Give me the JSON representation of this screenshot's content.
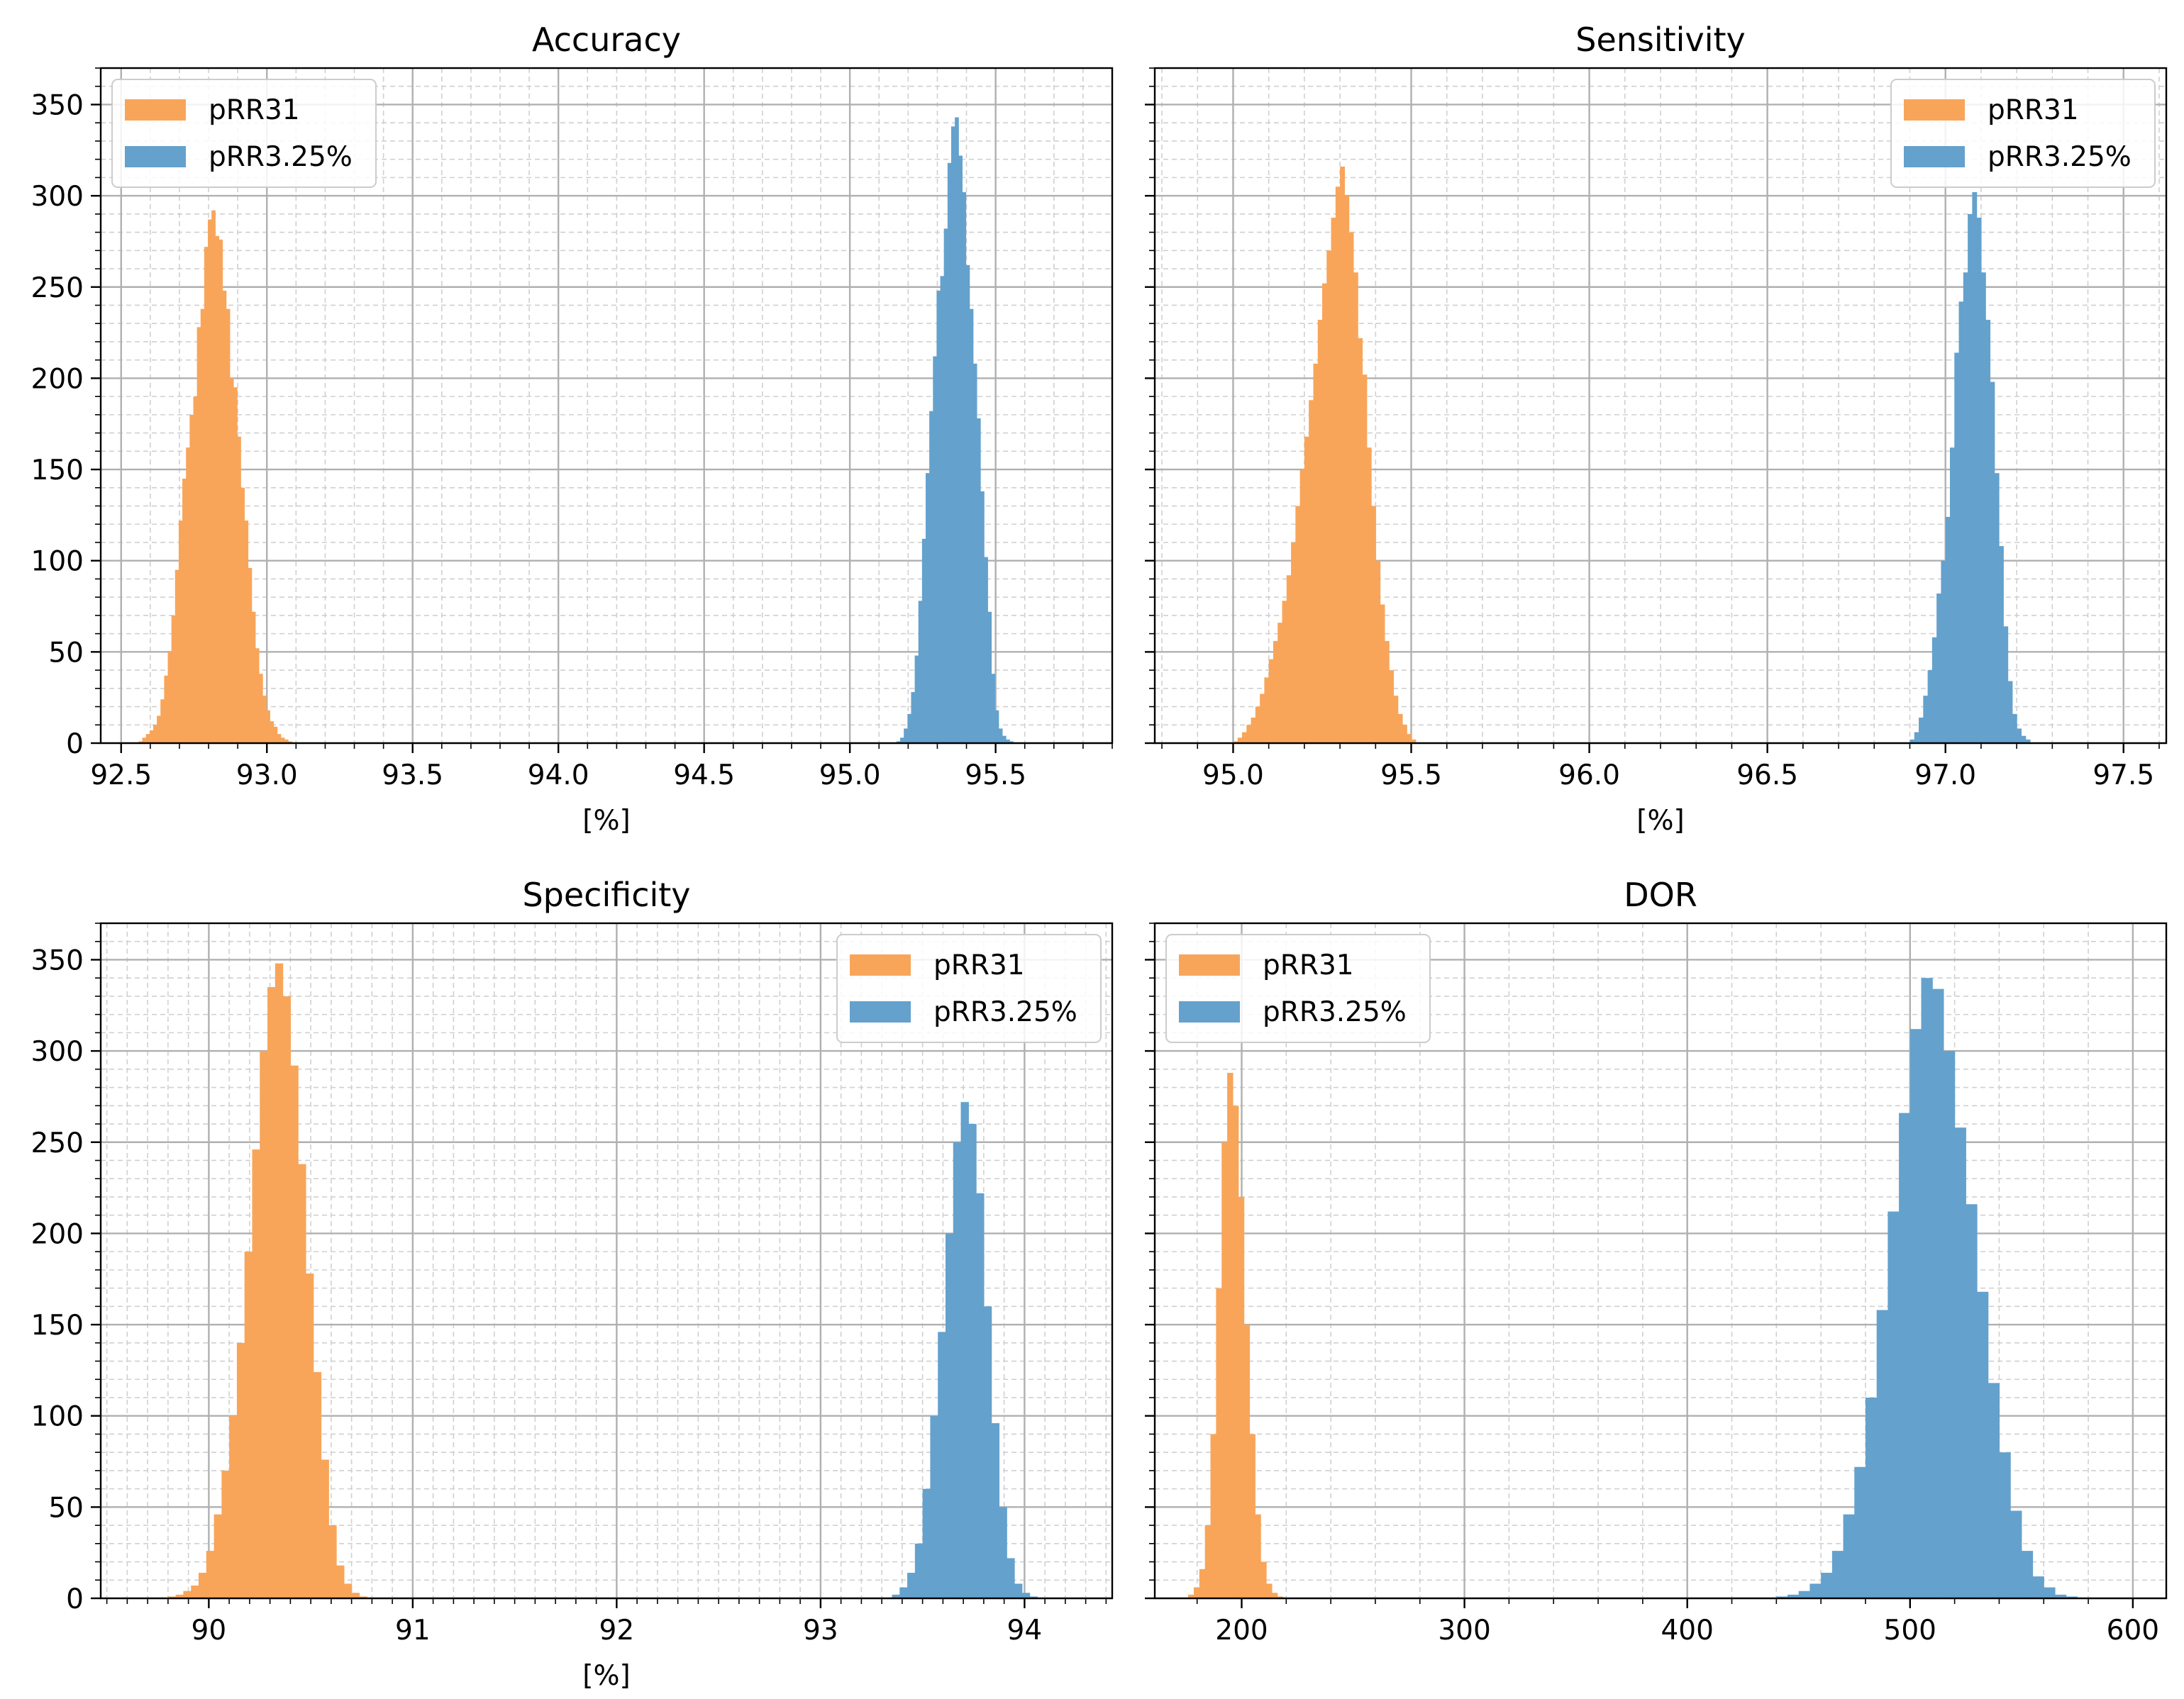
{
  "colors": {
    "pRR31": "#f8a55a",
    "pRR3.25%": "#64a1cd"
  },
  "chart_data": [
    {
      "type": "histogram",
      "title": "Accuracy",
      "xlabel": "[%]",
      "ylabel": "",
      "xlim": [
        92.43,
        95.9
      ],
      "ylim": [
        0,
        370
      ],
      "xticks": [
        92.5,
        93.0,
        93.5,
        94.0,
        94.5,
        95.0,
        95.5
      ],
      "xtick_labels": [
        "92.5",
        "93.0",
        "93.5",
        "94.0",
        "94.5",
        "95.0",
        "95.5"
      ],
      "yticks": [
        0,
        50,
        100,
        150,
        200,
        250,
        300,
        350
      ],
      "ytick_labels": [
        "0",
        "50",
        "100",
        "150",
        "200",
        "250",
        "300",
        "350"
      ],
      "x_minor_step": 0.1,
      "y_minor_step": 10,
      "grid": true,
      "legend": {
        "position": "upper-left",
        "entries": [
          "pRR31",
          "pRR3.25%"
        ]
      },
      "series": [
        {
          "name": "pRR31",
          "bin_start": 92.56,
          "bin_width": 0.0125,
          "counts": [
            1,
            3,
            5,
            7,
            10,
            15,
            24,
            37,
            50,
            70,
            95,
            122,
            145,
            162,
            180,
            190,
            228,
            238,
            272,
            287,
            292,
            278,
            276,
            248,
            238,
            200,
            195,
            168,
            140,
            122,
            96,
            72,
            52,
            38,
            26,
            18,
            12,
            9,
            5,
            3,
            2,
            1
          ]
        },
        {
          "name": "pRR3.25%",
          "bin_start": 95.16,
          "bin_width": 0.0125,
          "counts": [
            1,
            3,
            8,
            16,
            28,
            48,
            78,
            112,
            148,
            182,
            212,
            248,
            256,
            282,
            318,
            338,
            343,
            322,
            302,
            262,
            238,
            208,
            178,
            138,
            102,
            72,
            38,
            18,
            8,
            4,
            2,
            1
          ]
        }
      ]
    },
    {
      "type": "histogram",
      "title": "Sensitivity",
      "xlabel": "[%]",
      "ylabel": "",
      "xlim": [
        94.78,
        97.62
      ],
      "ylim": [
        0,
        370
      ],
      "xticks": [
        95.0,
        95.5,
        96.0,
        96.5,
        97.0,
        97.5
      ],
      "xtick_labels": [
        "95.0",
        "95.5",
        "96.0",
        "96.5",
        "97.0",
        "97.5"
      ],
      "yticks": [
        0,
        50,
        100,
        150,
        200,
        250,
        300,
        350
      ],
      "ytick_labels": [
        "",
        "",
        "",
        "",
        "",
        "",
        "",
        ""
      ],
      "x_minor_step": 0.1,
      "y_minor_step": 10,
      "grid": true,
      "legend": {
        "position": "upper-right",
        "entries": [
          "pRR31",
          "pRR3.25%"
        ]
      },
      "series": [
        {
          "name": "pRR31",
          "bin_start": 95.0,
          "bin_width": 0.0125,
          "counts": [
            1,
            3,
            6,
            10,
            14,
            20,
            27,
            36,
            46,
            56,
            66,
            78,
            92,
            110,
            130,
            150,
            168,
            188,
            208,
            232,
            252,
            270,
            288,
            305,
            316,
            300,
            280,
            258,
            222,
            202,
            162,
            130,
            100,
            76,
            56,
            40,
            26,
            16,
            10,
            5,
            2
          ]
        },
        {
          "name": "pRR3.25%",
          "bin_start": 96.9,
          "bin_width": 0.0125,
          "counts": [
            2,
            6,
            14,
            26,
            40,
            58,
            82,
            100,
            124,
            162,
            214,
            242,
            258,
            290,
            302,
            288,
            258,
            232,
            198,
            148,
            108,
            64,
            34,
            16,
            8,
            4,
            2
          ]
        }
      ]
    },
    {
      "type": "histogram",
      "title": "Specificity",
      "xlabel": "[%]",
      "ylabel": "",
      "xlim": [
        89.47,
        94.43
      ],
      "ylim": [
        0,
        370
      ],
      "xticks": [
        90,
        91,
        92,
        93,
        94
      ],
      "xtick_labels": [
        "90",
        "91",
        "92",
        "93",
        "94"
      ],
      "yticks": [
        0,
        50,
        100,
        150,
        200,
        250,
        300,
        350
      ],
      "ytick_labels": [
        "0",
        "50",
        "100",
        "150",
        "200",
        "250",
        "300",
        "350"
      ],
      "x_minor_step": 0.1,
      "y_minor_step": 10,
      "grid": true,
      "legend": {
        "position": "upper-right",
        "entries": [
          "pRR31",
          "pRR3.25%"
        ]
      },
      "series": [
        {
          "name": "pRR31",
          "bin_start": 89.8,
          "bin_width": 0.0375,
          "counts": [
            1,
            2,
            4,
            7,
            14,
            26,
            46,
            70,
            100,
            140,
            190,
            246,
            300,
            335,
            348,
            330,
            292,
            238,
            178,
            124,
            76,
            40,
            18,
            8,
            3,
            1
          ]
        },
        {
          "name": "pRR3.25%",
          "bin_start": 93.35,
          "bin_width": 0.0375,
          "counts": [
            2,
            6,
            14,
            30,
            60,
            100,
            146,
            200,
            250,
            272,
            260,
            222,
            160,
            96,
            50,
            22,
            8,
            3,
            1
          ]
        }
      ]
    },
    {
      "type": "histogram",
      "title": "DOR",
      "xlabel": "",
      "ylabel": "",
      "xlim": [
        161,
        615
      ],
      "ylim": [
        0,
        370
      ],
      "xticks": [
        200,
        300,
        400,
        500,
        600
      ],
      "xtick_labels": [
        "200",
        "300",
        "400",
        "500",
        "600"
      ],
      "yticks": [
        0,
        50,
        100,
        150,
        200,
        250,
        300,
        350
      ],
      "ytick_labels": [
        "",
        "",
        "",
        "",
        "",
        "",
        "",
        ""
      ],
      "x_minor_step": 20,
      "y_minor_step": 10,
      "grid": true,
      "legend": {
        "position": "upper-left",
        "entries": [
          "pRR31",
          "pRR3.25%"
        ]
      },
      "series": [
        {
          "name": "pRR31",
          "bin_start": 176,
          "bin_width": 2.5,
          "counts": [
            2,
            6,
            16,
            40,
            90,
            170,
            250,
            288,
            270,
            220,
            150,
            90,
            46,
            20,
            8,
            3,
            1
          ]
        },
        {
          "name": "pRR3.25%",
          "bin_start": 440,
          "bin_width": 5,
          "counts": [
            1,
            2,
            4,
            8,
            14,
            26,
            46,
            72,
            110,
            158,
            212,
            266,
            312,
            340,
            334,
            300,
            258,
            216,
            168,
            118,
            80,
            48,
            26,
            12,
            6,
            2,
            1
          ]
        }
      ]
    }
  ]
}
